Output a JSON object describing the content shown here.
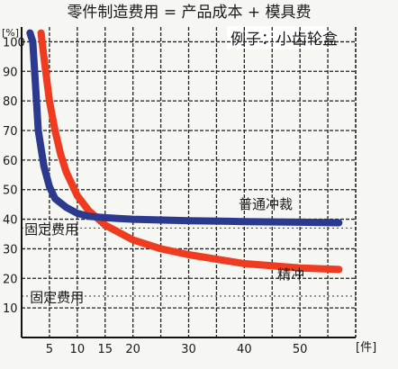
{
  "chart_data": {
    "type": "line",
    "title": "零件制造费用 = 产品成本 + 模具费",
    "subtitle": "例子：小齿轮盒",
    "y_unit": "[%]",
    "x_unit": "[件]",
    "xlim": [
      0,
      60
    ],
    "ylim": [
      0,
      105
    ],
    "x_ticks": [
      5,
      10,
      15,
      20,
      30,
      40,
      50
    ],
    "y_ticks": [
      10,
      20,
      30,
      40,
      50,
      60,
      70,
      80,
      90,
      100
    ],
    "grid": true,
    "series": [
      {
        "name": "普通冲裁",
        "color": "#2b3a8f",
        "x": [
          1.5,
          2,
          2.5,
          3,
          4,
          5,
          6,
          8,
          10,
          12,
          15,
          20,
          30,
          40,
          50,
          57
        ],
        "y": [
          103,
          100,
          85,
          70,
          58,
          51,
          47,
          44,
          42,
          41,
          40.5,
          40,
          39.5,
          39.2,
          39.0,
          38.8
        ]
      },
      {
        "name": "精冲",
        "color": "#ef3b1f",
        "x": [
          3.5,
          4,
          5,
          6,
          7,
          8,
          10,
          12,
          15,
          20,
          25,
          30,
          40,
          50,
          57
        ],
        "y": [
          103,
          95,
          80,
          70,
          62,
          56,
          48,
          43,
          38,
          33,
          30,
          28,
          25,
          23.5,
          23
        ]
      }
    ],
    "annotations": [
      {
        "text": "固定费用",
        "x": 0.5,
        "y": 35,
        "line_y": 37
      },
      {
        "text": "固定费用",
        "x": 1.5,
        "y": 12,
        "line_y": 14
      }
    ]
  }
}
